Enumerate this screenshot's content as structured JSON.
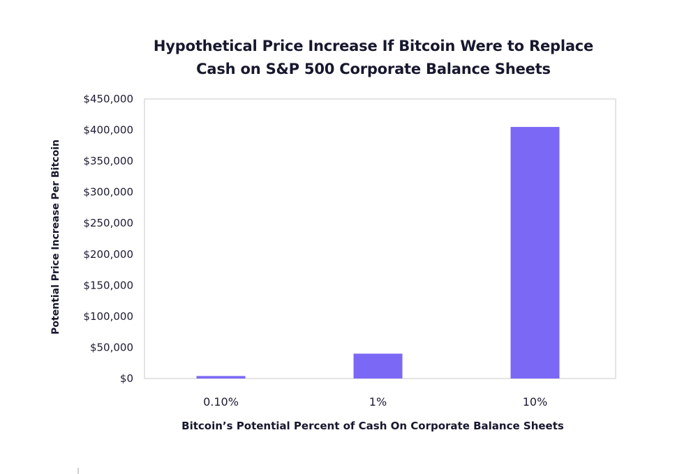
{
  "chart_data": {
    "type": "bar",
    "title_lines": [
      "Hypothetical Price Increase If Bitcoin Were to Replace",
      "Cash on S&P 500 Corporate Balance Sheets"
    ],
    "xlabel": "Bitcoin’s Potential Percent of Cash On Corporate Balance Sheets",
    "ylabel": "Potential Price Increase Per Bitcoin",
    "categories": [
      "0.10%",
      "1%",
      "10%"
    ],
    "values": [
      4000,
      40000,
      405000
    ],
    "ylim": [
      0,
      450000
    ],
    "yticks": [
      0,
      50000,
      100000,
      150000,
      200000,
      250000,
      300000,
      350000,
      400000,
      450000
    ],
    "ytick_labels": [
      "$0",
      "$50,000",
      "$100,000",
      "$150,000",
      "$200,000",
      "$250,000",
      "$300,000",
      "$350,000",
      "$400,000",
      "$450,000"
    ],
    "grid": false,
    "legend": "none",
    "bar_color": "#7b68f5",
    "frame_color": "#e4e4e4"
  }
}
